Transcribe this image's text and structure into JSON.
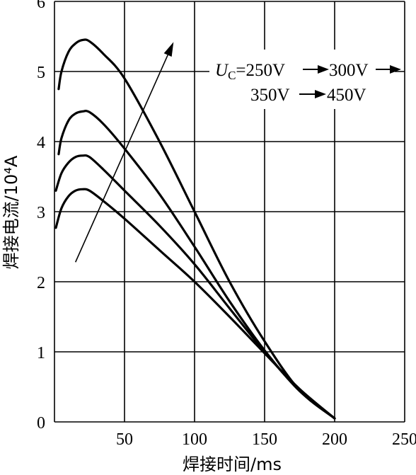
{
  "chart_data": {
    "type": "line",
    "xlabel": "焊接时间/ms",
    "ylabel": "焊接电流/10⁴A",
    "xlim": [
      0,
      250
    ],
    "ylim": [
      0,
      6
    ],
    "x_ticks": [
      "50",
      "100",
      "150",
      "200",
      "250"
    ],
    "y_ticks": [
      "0",
      "1",
      "2",
      "3",
      "4",
      "5",
      "6"
    ],
    "grid": true,
    "annotation": {
      "line1": "U",
      "line1_sub": "C",
      "line1_rest": "=250V",
      "line1_b": "300V",
      "line2_a": "350V",
      "line2_b": "450V"
    },
    "series": [
      {
        "values": [
          [
            1,
            2.77
          ],
          [
            5,
            3.05
          ],
          [
            10,
            3.22
          ],
          [
            15,
            3.3
          ],
          [
            20,
            3.32
          ],
          [
            25,
            3.3
          ],
          [
            35,
            3.15
          ],
          [
            50,
            2.9
          ],
          [
            75,
            2.45
          ],
          [
            100,
            2.0
          ],
          [
            125,
            1.5
          ],
          [
            150,
            0.98
          ],
          [
            175,
            0.47
          ],
          [
            200,
            0.05
          ]
        ]
      },
      {
        "values": [
          [
            1,
            3.3
          ],
          [
            5,
            3.55
          ],
          [
            10,
            3.7
          ],
          [
            15,
            3.78
          ],
          [
            20,
            3.8
          ],
          [
            25,
            3.78
          ],
          [
            35,
            3.6
          ],
          [
            50,
            3.3
          ],
          [
            75,
            2.8
          ],
          [
            100,
            2.25
          ],
          [
            125,
            1.62
          ],
          [
            150,
            1.0
          ],
          [
            175,
            0.45
          ],
          [
            200,
            0.05
          ]
        ]
      },
      {
        "values": [
          [
            3,
            3.82
          ],
          [
            5,
            4.05
          ],
          [
            10,
            4.3
          ],
          [
            15,
            4.4
          ],
          [
            20,
            4.43
          ],
          [
            25,
            4.42
          ],
          [
            35,
            4.25
          ],
          [
            50,
            3.9
          ],
          [
            75,
            3.25
          ],
          [
            100,
            2.5
          ],
          [
            125,
            1.72
          ],
          [
            150,
            1.02
          ],
          [
            175,
            0.44
          ],
          [
            200,
            0.05
          ]
        ]
      },
      {
        "values": [
          [
            3,
            4.75
          ],
          [
            5,
            5.0
          ],
          [
            10,
            5.28
          ],
          [
            15,
            5.4
          ],
          [
            20,
            5.45
          ],
          [
            25,
            5.43
          ],
          [
            35,
            5.25
          ],
          [
            50,
            4.9
          ],
          [
            75,
            4.0
          ],
          [
            100,
            3.0
          ],
          [
            125,
            2.0
          ],
          [
            150,
            1.15
          ],
          [
            175,
            0.45
          ],
          [
            200,
            0.05
          ]
        ]
      }
    ],
    "trend_arrow": {
      "from": [
        15,
        2.28
      ],
      "to": [
        85,
        5.42
      ]
    }
  }
}
